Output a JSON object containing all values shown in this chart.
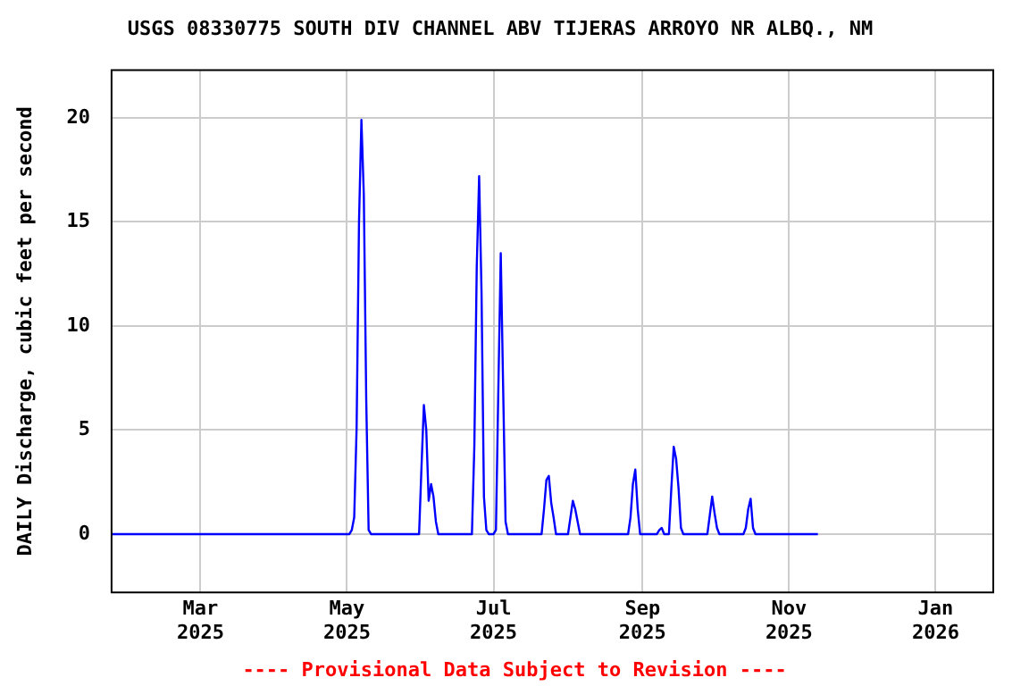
{
  "chart_data": {
    "type": "line",
    "title": "USGS 08330775 SOUTH DIV CHANNEL ABV TIJERAS ARROYO NR ALBQ., NM",
    "ylabel": "DAILY Discharge, cubic feet per second",
    "annotations": [
      "---- Provisional Data Subject to Revision ----"
    ],
    "series": [
      {
        "color": "#0000ff",
        "x": [
          "2025-01-23",
          "2025-05-02",
          "2025-05-03",
          "2025-05-04",
          "2025-05-05",
          "2025-05-06",
          "2025-05-07",
          "2025-05-08",
          "2025-05-09",
          "2025-05-10",
          "2025-05-11",
          "2025-05-31",
          "2025-06-01",
          "2025-06-02",
          "2025-06-03",
          "2025-06-04",
          "2025-06-05",
          "2025-06-06",
          "2025-06-07",
          "2025-06-08",
          "2025-06-22",
          "2025-06-23",
          "2025-06-24",
          "2025-06-25",
          "2025-06-26",
          "2025-06-27",
          "2025-06-28",
          "2025-06-29",
          "2025-07-01",
          "2025-07-02",
          "2025-07-03",
          "2025-07-04",
          "2025-07-05",
          "2025-07-06",
          "2025-07-07",
          "2025-07-21",
          "2025-07-22",
          "2025-07-23",
          "2025-07-24",
          "2025-07-25",
          "2025-07-26",
          "2025-07-27",
          "2025-08-01",
          "2025-08-02",
          "2025-08-03",
          "2025-08-04",
          "2025-08-05",
          "2025-08-06",
          "2025-08-26",
          "2025-08-27",
          "2025-08-28",
          "2025-08-29",
          "2025-08-30",
          "2025-08-31",
          "2025-09-07",
          "2025-09-08",
          "2025-09-09",
          "2025-09-10",
          "2025-09-12",
          "2025-09-13",
          "2025-09-14",
          "2025-09-15",
          "2025-09-16",
          "2025-09-17",
          "2025-09-18",
          "2025-09-28",
          "2025-09-29",
          "2025-09-30",
          "2025-10-01",
          "2025-10-02",
          "2025-10-03",
          "2025-10-13",
          "2025-10-14",
          "2025-10-15",
          "2025-10-16",
          "2025-10-17",
          "2025-10-18",
          "2025-11-13"
        ],
        "values": [
          0,
          0,
          0.2,
          0.8,
          5.1,
          15,
          19.9,
          16.3,
          6.5,
          0.2,
          0,
          0,
          3.2,
          6.2,
          5.0,
          1.6,
          2.4,
          1.8,
          0.6,
          0,
          0,
          4.2,
          12.8,
          17.2,
          11.6,
          1.8,
          0.2,
          0,
          0,
          0.2,
          7.0,
          13.5,
          7.0,
          0.6,
          0,
          0,
          1.2,
          2.6,
          2.8,
          1.5,
          0.8,
          0,
          0,
          0.8,
          1.6,
          1.2,
          0.6,
          0,
          0,
          0.8,
          2.4,
          3.1,
          1.2,
          0,
          0,
          0.2,
          0.3,
          0,
          0,
          2.2,
          4.2,
          3.6,
          2.2,
          0.3,
          0,
          0,
          0.9,
          1.8,
          1.0,
          0.3,
          0,
          0,
          0.3,
          1.2,
          1.7,
          0.3,
          0,
          0
        ]
      }
    ],
    "xlim": [
      "2025-01-23",
      "2026-01-25"
    ],
    "xticks": [
      {
        "value": "2025-03-01",
        "label": "Mar 2025"
      },
      {
        "value": "2025-05-01",
        "label": "May 2025"
      },
      {
        "value": "2025-07-01",
        "label": "Jul 2025"
      },
      {
        "value": "2025-09-01",
        "label": "Sep 2025"
      },
      {
        "value": "2025-11-01",
        "label": "Nov 2025"
      },
      {
        "value": "2026-01-01",
        "label": "Jan 2026"
      }
    ],
    "ylim": [
      -2.8,
      22.3
    ],
    "yticks": [
      0,
      5,
      10,
      15,
      20
    ],
    "grid": true,
    "legend": false,
    "marker": "none",
    "line_style": "solid"
  }
}
